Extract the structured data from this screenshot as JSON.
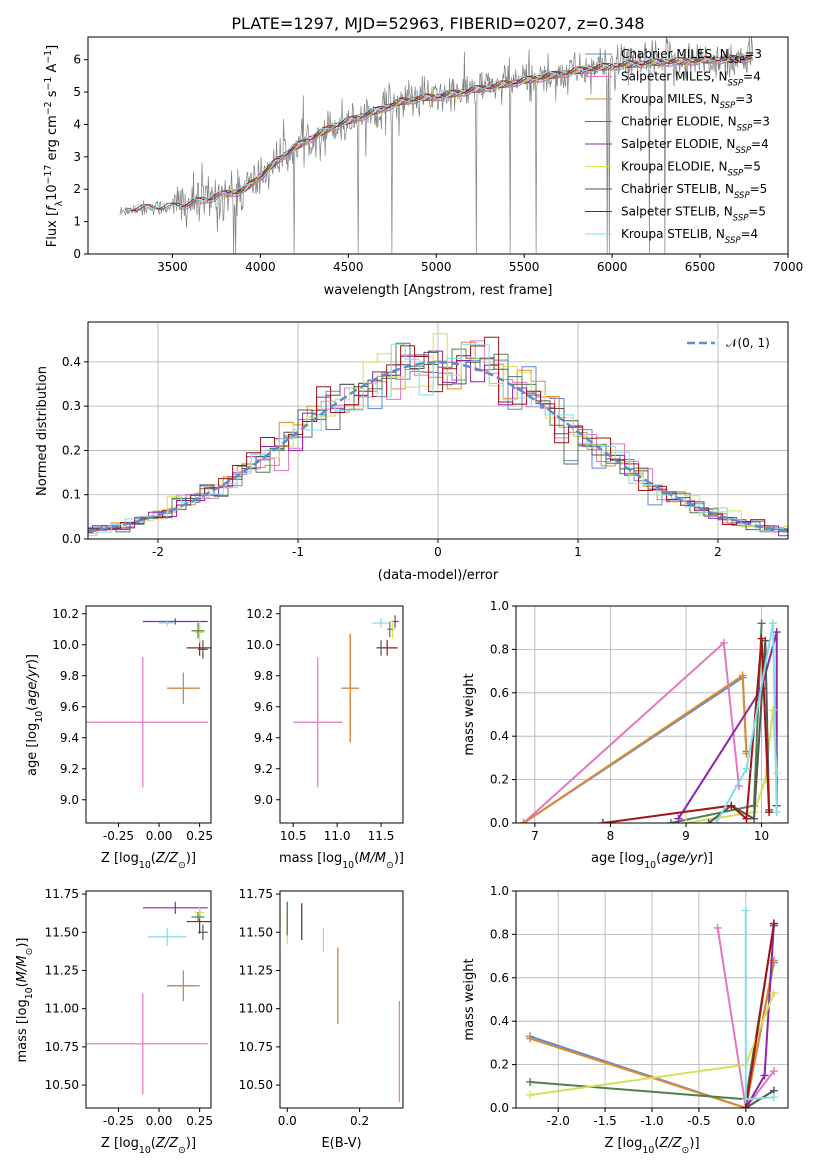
{
  "figure_title": "PLATE=1297, MJD=52963, FIBERID=0207, z=0.348",
  "colors": {
    "Chabrier MILES": "#5b8bd0",
    "Salpeter MILES": "#e377c2",
    "Kroupa MILES": "#e08a2e",
    "Chabrier ELODIE": "#4f7f4f",
    "Salpeter ELODIE": "#8e24aa",
    "Kroupa ELODIE": "#d4e157",
    "Chabrier STELIB": "#555555",
    "Salpeter STELIB": "#a31515",
    "Kroupa STELIB": "#80deea",
    "normal_curve": "#5b8bd0",
    "gray_spectrum": "#808080"
  },
  "chart_data": [
    {
      "id": "spectrum",
      "type": "line",
      "title": "PLATE=1297, MJD=52963, FIBERID=0207, z=0.348",
      "xlabel": "wavelength [Angstrom, rest frame]",
      "ylabel": "Flux [f_λ 10^-17 erg cm^-2 s^-1 A^-1]",
      "xlim": [
        3020,
        7000
      ],
      "ylim": [
        0,
        6.7
      ],
      "xticks": [
        3500,
        4000,
        4500,
        5000,
        5500,
        6000,
        6500,
        7000
      ],
      "yticks": [
        0,
        1,
        2,
        3,
        4,
        5,
        6
      ],
      "grid": false,
      "legend_position": "right",
      "legend": [
        {
          "name": "Chabrier MILES",
          "n_ssp": "3"
        },
        {
          "name": "Salpeter MILES",
          "n_ssp": "4"
        },
        {
          "name": "Kroupa MILES",
          "n_ssp": "3"
        },
        {
          "name": "Chabrier ELODIE",
          "n_ssp": "3"
        },
        {
          "name": "Salpeter ELODIE",
          "n_ssp": "4"
        },
        {
          "name": "Kroupa ELODIE",
          "n_ssp": "5"
        },
        {
          "name": "Chabrier STELIB",
          "n_ssp": "5"
        },
        {
          "name": "Salpeter STELIB",
          "n_ssp": "5"
        },
        {
          "name": "Kroupa STELIB",
          "n_ssp": "4"
        }
      ],
      "continuum_x": [
        3200,
        3250,
        3300,
        3400,
        3500,
        3600,
        3700,
        3800,
        3900,
        4000,
        4100,
        4200,
        4300,
        4400,
        4500,
        4600,
        4700,
        4800,
        4900,
        5000,
        5200,
        5400,
        5600,
        5800,
        6000,
        6200,
        6400,
        6600,
        6800
      ],
      "continuum_y": [
        1.25,
        1.35,
        1.4,
        1.42,
        1.45,
        1.55,
        1.7,
        1.85,
        1.95,
        2.4,
        2.9,
        3.3,
        3.6,
        3.9,
        4.1,
        4.3,
        4.5,
        4.7,
        4.8,
        4.85,
        5.05,
        5.25,
        5.45,
        5.65,
        5.8,
        5.9,
        5.95,
        6.0,
        6.05
      ]
    },
    {
      "id": "residuals",
      "type": "bar",
      "xlabel": "(data-model)/error",
      "ylabel": "Normed distribution",
      "xlim": [
        -2.5,
        2.5
      ],
      "ylim": [
        0,
        0.49
      ],
      "xticks": [
        -2,
        -1,
        0,
        1,
        2
      ],
      "yticks": [
        0.0,
        0.1,
        0.2,
        0.3,
        0.4
      ],
      "grid": true,
      "legend_position": "top-right",
      "legend": [
        "𝒩(0, 1)"
      ],
      "bin_width": 0.1,
      "note": "nine step histograms of 0.1-wide bins closely following the standard normal density"
    },
    {
      "id": "age_vs_Z",
      "type": "scatter",
      "xlabel": "Z [log10(Z/Z☉)]",
      "ylabel": "age  [log10(age/yr)]",
      "xlim": [
        -0.45,
        0.32
      ],
      "ylim": [
        8.85,
        10.25
      ],
      "xticks": [
        -0.25,
        0.0,
        0.25
      ],
      "yticks": [
        9.0,
        9.2,
        9.4,
        9.6,
        9.8,
        10.0,
        10.2
      ],
      "points": [
        {
          "model": "Salpeter MILES",
          "x": -0.1,
          "xerr": 0.4,
          "y": 9.5,
          "yerr": 0.42
        },
        {
          "model": "Chabrier MILES",
          "x": 0.15,
          "xerr": 0.1,
          "y": 9.72,
          "yerr": 0.1
        },
        {
          "model": "Kroupa MILES",
          "x": 0.15,
          "xerr": 0.1,
          "y": 9.72,
          "yerr": 0.1
        },
        {
          "model": "Salpeter STELIB",
          "x": 0.25,
          "xerr": 0.08,
          "y": 9.98,
          "yerr": 0.05
        },
        {
          "model": "Chabrier STELIB",
          "x": 0.27,
          "xerr": 0.03,
          "y": 9.97,
          "yerr": 0.06
        },
        {
          "model": "Salpeter ELODIE",
          "x": 0.1,
          "xerr": 0.2,
          "y": 10.15,
          "yerr": 0.02
        },
        {
          "model": "Kroupa ELODIE",
          "x": 0.25,
          "xerr": 0.03,
          "y": 10.08,
          "yerr": 0.07
        },
        {
          "model": "Chabrier ELODIE",
          "x": 0.24,
          "xerr": 0.04,
          "y": 10.09,
          "yerr": 0.05
        },
        {
          "model": "Kroupa STELIB",
          "x": 0.05,
          "xerr": 0.05,
          "y": 10.14,
          "yerr": 0.02
        }
      ]
    },
    {
      "id": "age_vs_mass",
      "type": "scatter",
      "xlabel": "mass [log10(M/M☉)]",
      "ylabel": "",
      "xlim": [
        10.35,
        11.75
      ],
      "ylim": [
        8.85,
        10.25
      ],
      "xticks": [
        10.5,
        11.0,
        11.5
      ],
      "yticks": [
        9.0,
        9.2,
        9.4,
        9.6,
        9.8,
        10.0,
        10.2
      ],
      "points": [
        {
          "model": "Salpeter MILES",
          "x": 10.78,
          "xerr": 0.28,
          "y": 9.5,
          "yerr": 0.42
        },
        {
          "model": "Chabrier MILES",
          "x": 11.15,
          "xerr": 0.1,
          "y": 9.72,
          "yerr": 0.35
        },
        {
          "model": "Kroupa MILES",
          "x": 11.15,
          "xerr": 0.1,
          "y": 9.72,
          "yerr": 0.35
        },
        {
          "model": "Salpeter STELIB",
          "x": 11.57,
          "xerr": 0.12,
          "y": 9.98,
          "yerr": 0.05
        },
        {
          "model": "Chabrier STELIB",
          "x": 11.5,
          "xerr": 0.05,
          "y": 9.98,
          "yerr": 0.05
        },
        {
          "model": "Salpeter ELODIE",
          "x": 11.66,
          "xerr": 0.04,
          "y": 10.15,
          "yerr": 0.04
        },
        {
          "model": "Kroupa ELODIE",
          "x": 11.63,
          "xerr": 0.04,
          "y": 10.1,
          "yerr": 0.06
        },
        {
          "model": "Chabrier ELODIE",
          "x": 11.6,
          "xerr": 0.03,
          "y": 10.1,
          "yerr": 0.05
        },
        {
          "model": "Kroupa STELIB",
          "x": 11.5,
          "xerr": 0.1,
          "y": 10.14,
          "yerr": 0.03
        }
      ]
    },
    {
      "id": "mass_weight_vs_age",
      "type": "line",
      "xlabel": "age  [log10(age/yr)]",
      "ylabel": "mass weight",
      "xlim": [
        6.75,
        10.35
      ],
      "ylim": [
        0,
        1.0
      ],
      "xticks": [
        7,
        8,
        9,
        10
      ],
      "yticks": [
        0.0,
        0.2,
        0.4,
        0.6,
        0.8,
        1.0
      ],
      "grid": true,
      "series": [
        {
          "model": "Chabrier MILES",
          "x": [
            6.85,
            9.75,
            9.8
          ],
          "values": [
            0.0,
            0.67,
            0.33
          ]
        },
        {
          "model": "Salpeter MILES",
          "x": [
            6.85,
            9.5,
            9.7
          ],
          "values": [
            0.0,
            0.83,
            0.17
          ]
        },
        {
          "model": "Kroupa MILES",
          "x": [
            6.85,
            9.75,
            9.8
          ],
          "values": [
            0.0,
            0.68,
            0.32
          ]
        },
        {
          "model": "Chabrier ELODIE",
          "x": [
            8.8,
            9.9,
            10.0
          ],
          "values": [
            0.0,
            0.08,
            0.92
          ]
        },
        {
          "model": "Salpeter ELODIE",
          "x": [
            8.9,
            10.0,
            10.2,
            10.2
          ],
          "values": [
            0.02,
            0.62,
            0.88,
            0.08
          ]
        },
        {
          "model": "Kroupa ELODIE",
          "x": [
            9.0,
            9.9,
            10.05,
            10.15,
            10.2
          ],
          "values": [
            0.0,
            0.05,
            0.2,
            0.52,
            0.23
          ]
        },
        {
          "model": "Chabrier STELIB",
          "x": [
            9.3,
            9.6,
            9.9,
            10.05,
            10.1
          ],
          "values": [
            0.0,
            0.08,
            0.02,
            0.84,
            0.06
          ]
        },
        {
          "model": "Salpeter STELIB",
          "x": [
            7.9,
            9.6,
            9.8,
            10.0,
            10.1
          ],
          "values": [
            0.0,
            0.08,
            0.02,
            0.85,
            0.05
          ]
        },
        {
          "model": "Kroupa STELIB",
          "x": [
            9.4,
            9.8,
            10.15,
            10.2
          ],
          "values": [
            0.0,
            0.25,
            0.92,
            0.05
          ]
        }
      ]
    },
    {
      "id": "mass_vs_Z",
      "type": "scatter",
      "xlabel": "Z [log10(Z/Z☉)]",
      "ylabel": "mass [log10(M/M☉)]",
      "xlim": [
        -0.45,
        0.32
      ],
      "ylim": [
        10.35,
        11.77
      ],
      "xticks": [
        -0.25,
        0.0,
        0.25
      ],
      "yticks": [
        10.5,
        10.75,
        11.0,
        11.25,
        11.5,
        11.75
      ],
      "points": [
        {
          "model": "Salpeter MILES",
          "x": -0.1,
          "xerr": 0.4,
          "y": 10.77,
          "yerr": 0.33
        },
        {
          "model": "Chabrier MILES",
          "x": 0.15,
          "xerr": 0.1,
          "y": 11.15,
          "yerr": 0.1
        },
        {
          "model": "Kroupa MILES",
          "x": 0.15,
          "xerr": 0.1,
          "y": 11.15,
          "yerr": 0.1
        },
        {
          "model": "Salpeter STELIB",
          "x": 0.25,
          "xerr": 0.08,
          "y": 11.57,
          "yerr": 0.08
        },
        {
          "model": "Chabrier STELIB",
          "x": 0.27,
          "xerr": 0.03,
          "y": 11.5,
          "yerr": 0.05
        },
        {
          "model": "Salpeter ELODIE",
          "x": 0.1,
          "xerr": 0.2,
          "y": 11.66,
          "yerr": 0.04
        },
        {
          "model": "Kroupa ELODIE",
          "x": 0.25,
          "xerr": 0.03,
          "y": 11.63,
          "yerr": 0.04
        },
        {
          "model": "Chabrier ELODIE",
          "x": 0.24,
          "xerr": 0.04,
          "y": 11.6,
          "yerr": 0.03
        },
        {
          "model": "Kroupa STELIB",
          "x": 0.05,
          "xerr": 0.12,
          "y": 11.47,
          "yerr": 0.06
        }
      ]
    },
    {
      "id": "mass_vs_EBV",
      "type": "scatter",
      "xlabel": "E(B-V)",
      "ylabel": "",
      "xlim": [
        -0.02,
        0.32
      ],
      "ylim": [
        10.35,
        11.77
      ],
      "xticks": [
        0.0,
        0.2
      ],
      "yticks": [
        10.5,
        10.75,
        11.0,
        11.25,
        11.5,
        11.75
      ],
      "points": [
        {
          "model": "Salpeter MILES",
          "x": 0.31,
          "y": 10.72,
          "yerr": 0.33
        },
        {
          "model": "Chabrier MILES",
          "x": 0.14,
          "y": 11.15,
          "yerr": 0.25
        },
        {
          "model": "Kroupa MILES",
          "x": 0.14,
          "y": 11.15,
          "yerr": 0.25
        },
        {
          "model": "Salpeter STELIB",
          "x": 0.04,
          "y": 11.57,
          "yerr": 0.12
        },
        {
          "model": "Chabrier STELIB",
          "x": 0.04,
          "y": 11.55,
          "yerr": 0.1
        },
        {
          "model": "Salpeter ELODIE",
          "x": 0.0,
          "y": 11.6,
          "yerr": 0.1
        },
        {
          "model": "Kroupa ELODIE",
          "x": 0.0,
          "y": 11.55,
          "yerr": 0.13
        },
        {
          "model": "Chabrier ELODIE",
          "x": 0.0,
          "y": 11.58,
          "yerr": 0.1
        },
        {
          "model": "Kroupa STELIB",
          "x": 0.1,
          "y": 11.45,
          "yerr": 0.08
        }
      ]
    },
    {
      "id": "mass_weight_vs_Z",
      "type": "line",
      "xlabel": "Z [log10(Z/Z☉)]",
      "ylabel": "mass weight",
      "xlim": [
        -2.45,
        0.45
      ],
      "ylim": [
        0,
        1.0
      ],
      "xticks": [
        -2.0,
        -1.5,
        -1.0,
        -0.5,
        0.0
      ],
      "yticks": [
        0.0,
        0.2,
        0.4,
        0.6,
        0.8,
        1.0
      ],
      "grid": true,
      "series": [
        {
          "model": "Chabrier MILES",
          "x": [
            -2.3,
            0.0,
            0.3
          ],
          "values": [
            0.33,
            0.0,
            0.67
          ]
        },
        {
          "model": "Salpeter MILES",
          "x": [
            -0.3,
            0.0,
            0.3
          ],
          "values": [
            0.83,
            0.0,
            0.17
          ]
        },
        {
          "model": "Kroupa MILES",
          "x": [
            -2.3,
            0.0,
            0.3
          ],
          "values": [
            0.32,
            0.0,
            0.68
          ]
        },
        {
          "model": "Chabrier ELODIE",
          "x": [
            -2.3,
            0.0,
            0.3
          ],
          "values": [
            0.12,
            0.04,
            0.84
          ]
        },
        {
          "model": "Salpeter ELODIE",
          "x": [
            0.0,
            0.2,
            0.3
          ],
          "values": [
            0.0,
            0.15,
            0.85
          ]
        },
        {
          "model": "Kroupa ELODIE",
          "x": [
            -2.3,
            0.0,
            0.3
          ],
          "values": [
            0.06,
            0.2,
            0.53
          ]
        },
        {
          "model": "Chabrier STELIB",
          "x": [
            0.0,
            0.3
          ],
          "values": [
            0.0,
            0.08
          ]
        },
        {
          "model": "Salpeter STELIB",
          "x": [
            0.0,
            0.3
          ],
          "values": [
            0.0,
            0.85
          ]
        },
        {
          "model": "Kroupa STELIB",
          "x": [
            0.0,
            0.0,
            0.3
          ],
          "values": [
            0.91,
            0.04,
            0.05
          ]
        }
      ]
    }
  ]
}
